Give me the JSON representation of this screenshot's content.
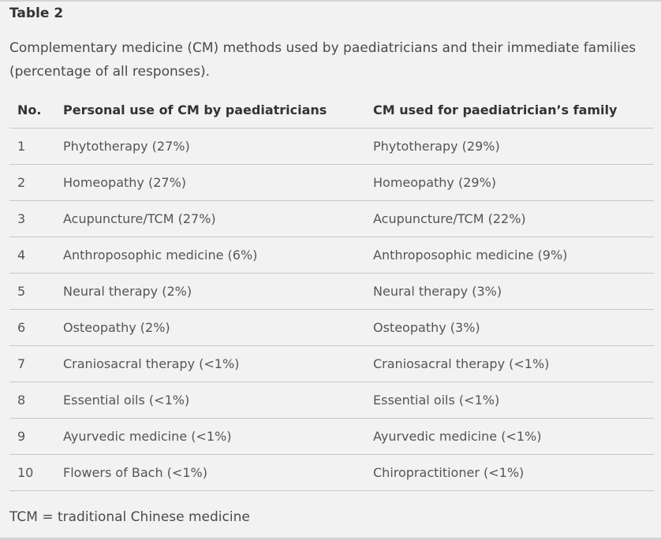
{
  "table": {
    "title": "Table 2",
    "caption": "Complementary medicine (CM) methods used by paediatricians and their immediate families (percentage of all responses).",
    "headers": [
      "No.",
      "Personal use of CM by paediatricians",
      "CM used for paediatrician’s family"
    ],
    "rows": [
      [
        "1",
        "Phytotherapy (27%)",
        "Phytotherapy (29%)"
      ],
      [
        "2",
        "Homeopathy (27%)",
        "Homeopathy (29%)"
      ],
      [
        "3",
        "Acupuncture/TCM (27%)",
        "Acupuncture/TCM (22%)"
      ],
      [
        "4",
        "Anthroposophic medicine (6%)",
        "Anthroposophic medicine (9%)"
      ],
      [
        "5",
        "Neural therapy (2%)",
        "Neural therapy (3%)"
      ],
      [
        "6",
        "Osteopathy (2%)",
        "Osteopathy (3%)"
      ],
      [
        "7",
        "Craniosacral therapy (<1%)",
        "Craniosacral therapy (<1%)"
      ],
      [
        "8",
        "Essential oils (<1%)",
        "Essential oils (<1%)"
      ],
      [
        "9",
        "Ayurvedic medicine (<1%)",
        "Ayurvedic medicine (<1%)"
      ],
      [
        "10",
        "Flowers of Bach (<1%)",
        "Chiropractitioner (<1%)"
      ]
    ],
    "footnote": "TCM = traditional Chinese medicine"
  }
}
